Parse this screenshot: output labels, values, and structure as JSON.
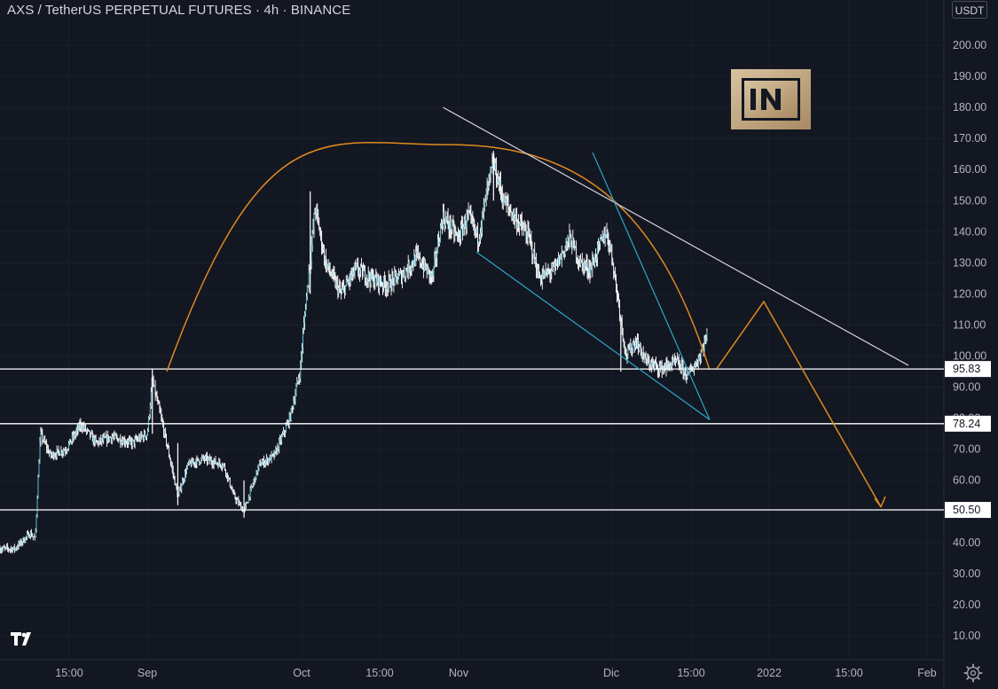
{
  "header": {
    "title": "AXS / TetherUS PERPETUAL FUTURES · 4h · BINANCE",
    "currency": "USDT"
  },
  "chart_data": {
    "type": "candlestick",
    "title": "AXS / TetherUS PERPETUAL FUTURES · 4h · BINANCE",
    "exchange": "BINANCE",
    "timeframe": "4h",
    "quote_currency": "USDT",
    "y_ticks": [
      "200.00",
      "190.00",
      "180.00",
      "170.00",
      "160.00",
      "150.00",
      "140.00",
      "130.00",
      "120.00",
      "110.00",
      "100.00",
      "90.00",
      "80.00",
      "70.00",
      "60.00",
      "50.00",
      "40.00",
      "30.00",
      "20.00",
      "10.00"
    ],
    "x_ticks": [
      "15:00",
      "Sep",
      "Oct",
      "15:00",
      "Nov",
      "Dic",
      "15:00",
      "2022",
      "15:00",
      "Feb"
    ],
    "ylim": [
      0,
      210
    ],
    "price_series": {
      "description": "approximate 4h close path (date, price)",
      "points": [
        [
          "2021-08-06",
          38
        ],
        [
          "2021-08-09",
          43
        ],
        [
          "2021-08-10",
          41
        ],
        [
          "2021-08-11",
          75
        ],
        [
          "2021-08-13",
          68
        ],
        [
          "2021-08-16",
          70
        ],
        [
          "2021-08-19",
          78
        ],
        [
          "2021-08-22",
          72
        ],
        [
          "2021-08-25",
          74
        ],
        [
          "2021-08-29",
          72
        ],
        [
          "2021-09-01",
          75
        ],
        [
          "2021-09-02",
          92
        ],
        [
          "2021-09-04",
          78
        ],
        [
          "2021-09-07",
          55
        ],
        [
          "2021-09-09",
          65
        ],
        [
          "2021-09-12",
          67
        ],
        [
          "2021-09-16",
          65
        ],
        [
          "2021-09-18",
          55
        ],
        [
          "2021-09-20",
          50
        ],
        [
          "2021-09-23",
          65
        ],
        [
          "2021-09-26",
          68
        ],
        [
          "2021-09-29",
          80
        ],
        [
          "2021-10-01",
          95
        ],
        [
          "2021-10-02",
          115
        ],
        [
          "2021-10-04",
          148
        ],
        [
          "2021-10-06",
          130
        ],
        [
          "2021-10-09",
          120
        ],
        [
          "2021-10-12",
          128
        ],
        [
          "2021-10-15",
          125
        ],
        [
          "2021-10-18",
          123
        ],
        [
          "2021-10-21",
          126
        ],
        [
          "2021-10-24",
          132
        ],
        [
          "2021-10-27",
          125
        ],
        [
          "2021-10-29",
          145
        ],
        [
          "2021-11-01",
          138
        ],
        [
          "2021-11-03",
          145
        ],
        [
          "2021-11-05",
          138
        ],
        [
          "2021-11-07",
          155
        ],
        [
          "2021-11-08",
          162
        ],
        [
          "2021-11-10",
          150
        ],
        [
          "2021-11-12",
          145
        ],
        [
          "2021-11-15",
          138
        ],
        [
          "2021-11-17",
          125
        ],
        [
          "2021-11-20",
          128
        ],
        [
          "2021-11-23",
          138
        ],
        [
          "2021-11-25",
          130
        ],
        [
          "2021-11-27",
          128
        ],
        [
          "2021-11-30",
          140
        ],
        [
          "2021-12-01",
          135
        ],
        [
          "2021-12-03",
          112
        ],
        [
          "2021-12-04",
          100
        ],
        [
          "2021-12-06",
          105
        ],
        [
          "2021-12-08",
          98
        ],
        [
          "2021-12-11",
          96
        ],
        [
          "2021-12-14",
          98
        ],
        [
          "2021-12-16",
          94
        ],
        [
          "2021-12-18",
          98
        ],
        [
          "2021-12-20",
          107
        ]
      ]
    },
    "horizontal_levels": [
      {
        "value": 95.83,
        "label": "95.83"
      },
      {
        "value": 78.24,
        "label": "78.24"
      },
      {
        "value": 50.5,
        "label": "50.50"
      }
    ],
    "annotations": [
      {
        "type": "arc",
        "color": "#e08a1e",
        "description": "rounded top from early Sep through mid Dec"
      },
      {
        "type": "trendline",
        "color": "#d1d4dc",
        "from": [
          "2021-10-27",
          180
        ],
        "to": [
          "2022-01-28",
          97
        ]
      },
      {
        "type": "channel",
        "color": "#2ba8c7",
        "lines": [
          [
            [
              "2021-11-03",
              134
            ],
            [
              "2021-12-20",
              80
            ]
          ],
          [
            [
              "2021-11-29",
              166
            ],
            [
              "2021-12-20",
              79
            ]
          ]
        ]
      },
      {
        "type": "projection",
        "color": "#e08a1e",
        "path": [
          [
            "2021-12-20",
            96
          ],
          [
            "2021-12-30",
            118
          ],
          [
            "2022-01-20",
            51
          ]
        ]
      }
    ],
    "colors": {
      "background": "#131722",
      "candle": "#ffffff",
      "trendline": "#d1d4dc",
      "arc": "#e08a1e",
      "channel": "#2ba8c7",
      "level_line": "#ffffff"
    }
  },
  "watermark": {
    "text": "[IN]"
  }
}
